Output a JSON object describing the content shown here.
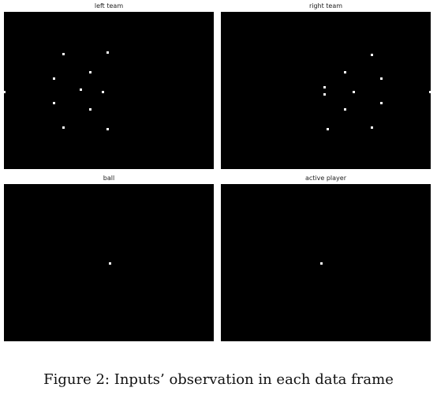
{
  "figure": {
    "caption": "Figure 2: Inputs’ observation in each data frame"
  },
  "panels": [
    {
      "title": "left team",
      "points": [
        [
          80,
          68
        ],
        [
          136,
          66
        ],
        [
          114,
          91
        ],
        [
          68,
          99
        ],
        [
          102,
          113
        ],
        [
          130,
          116
        ],
        [
          5,
          116
        ],
        [
          68,
          130
        ],
        [
          114,
          138
        ],
        [
          80,
          161
        ],
        [
          136,
          163
        ]
      ]
    },
    {
      "title": "right team",
      "points": [
        [
          471,
          69
        ],
        [
          437,
          91
        ],
        [
          483,
          99
        ],
        [
          411,
          110
        ],
        [
          448,
          116
        ],
        [
          411,
          119
        ],
        [
          545,
          116
        ],
        [
          483,
          130
        ],
        [
          437,
          138
        ],
        [
          471,
          161
        ],
        [
          415,
          163
        ]
      ]
    },
    {
      "title": "ball",
      "points": [
        [
          139,
          333
        ]
      ]
    },
    {
      "title": "active player",
      "points": [
        [
          407,
          333
        ]
      ]
    }
  ]
}
